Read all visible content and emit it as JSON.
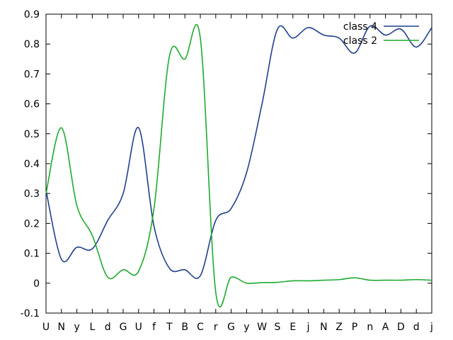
{
  "chart_data": {
    "type": "line",
    "title": "",
    "xlabel": "",
    "ylabel": "",
    "categories": [
      "U",
      "N",
      "y",
      "L",
      "d",
      "G",
      "U",
      "f",
      "T",
      "B",
      "C",
      "r",
      "G",
      "y",
      "W",
      "S",
      "E",
      "j",
      "N",
      "Z",
      "P",
      "n",
      "A",
      "D",
      "d",
      "j"
    ],
    "ylim": [
      -0.1,
      0.9
    ],
    "yticks": [
      "-0.1",
      "0",
      "0.1",
      "0.2",
      "0.3",
      "0.4",
      "0.5",
      "0.6",
      "0.7",
      "0.8",
      "0.9"
    ],
    "grid": false,
    "legend_position": "top-right",
    "series": [
      {
        "name": "class 4",
        "color": "#1f3f8f",
        "values": [
          0.31,
          0.08,
          0.12,
          0.115,
          0.21,
          0.3,
          0.52,
          0.19,
          0.05,
          0.045,
          0.025,
          0.21,
          0.25,
          0.37,
          0.6,
          0.85,
          0.82,
          0.855,
          0.83,
          0.82,
          0.77,
          0.86,
          0.83,
          0.85,
          0.79,
          0.855
        ]
      },
      {
        "name": "class 2",
        "color": "#1faa2f",
        "values": [
          0.3,
          0.52,
          0.26,
          0.16,
          0.02,
          0.045,
          0.04,
          0.25,
          0.76,
          0.75,
          0.82,
          -0.03,
          0.02,
          0.0,
          0.002,
          0.003,
          0.008,
          0.008,
          0.01,
          0.012,
          0.018,
          0.01,
          0.01,
          0.01,
          0.012,
          0.01
        ]
      }
    ]
  }
}
